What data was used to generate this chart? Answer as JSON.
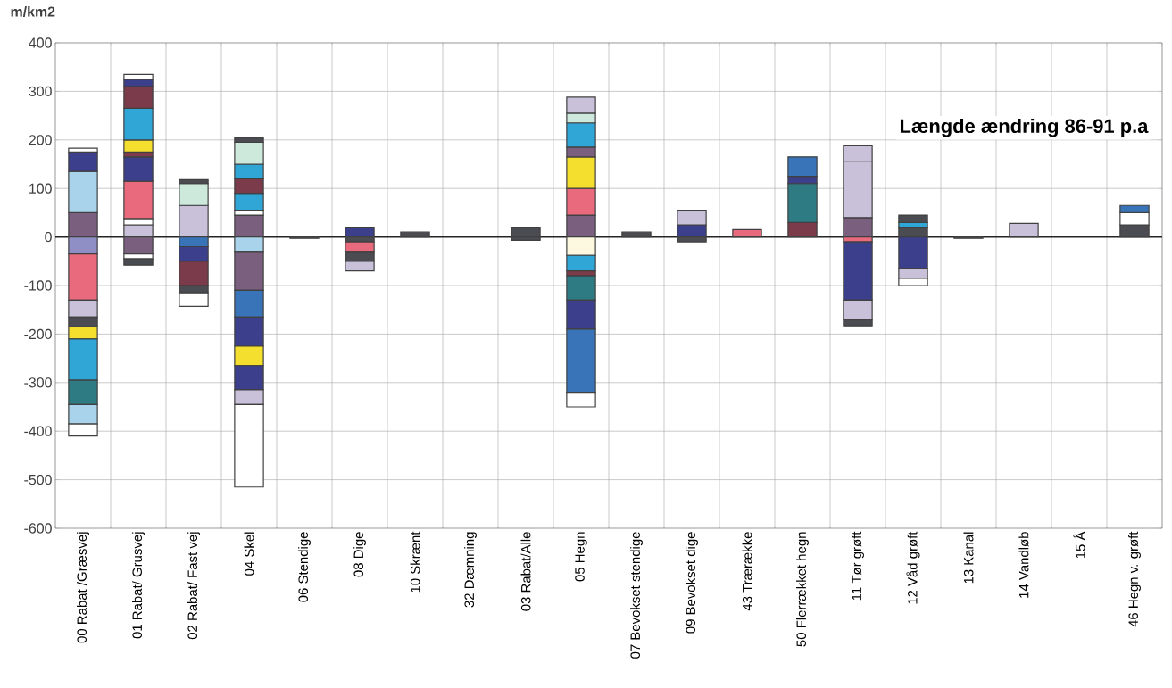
{
  "chart_data": {
    "type": "bar",
    "stacked": true,
    "title": "Længde ændring 86-91 p.a",
    "ylabel": "m/km2",
    "categories": [
      "00 Rabat /Græsvej",
      "01 Rabat/ Grusvej",
      "02 Rabat/ Fast vej",
      "04 Skel",
      "06 Stendige",
      "08 Dige",
      "10 Skrænt",
      "32 Dæmning",
      "03 Rabat/Alle",
      "05 Hegn",
      "07 Bevokset stendige",
      "09 Bevokset dige",
      "43 Trærække",
      "50 Flerrækket hegn",
      "11 Tør grøft",
      "12 Våd grøft",
      "13 Kanal",
      "14 Vandløb",
      "15 Å",
      "46 Hegn v. grøft"
    ],
    "ylim": [
      -600,
      400
    ],
    "yticks": [
      -600,
      -500,
      -400,
      -300,
      -200,
      -100,
      0,
      100,
      200,
      300,
      400
    ],
    "grid": true,
    "series": [
      {
        "values": [
          50,
          25,
          65,
          45,
          null,
          20,
          10,
          null,
          20,
          45,
          10,
          25,
          15,
          30,
          40,
          20,
          null,
          28,
          null,
          25
        ],
        "colors": [
          "#7a5f7e",
          "#c9c1da",
          "#c9c1da",
          "#7a5f7e",
          null,
          "#3b3f8c",
          "#4b4b52",
          null,
          "#4b4b52",
          "#7a5f7e",
          "#4b4b52",
          "#3b3f8c",
          "#e86a7c",
          "#7b3b4a",
          "#7a5f7e",
          "#4b4b52",
          null,
          "#c9c1da",
          null,
          "#4b4b52"
        ]
      },
      {
        "values": [
          85,
          13,
          45,
          10,
          null,
          null,
          null,
          null,
          null,
          55,
          null,
          30,
          null,
          80,
          115,
          10,
          null,
          null,
          null,
          25
        ],
        "colors": [
          "#a9d3ea",
          "#ffffff",
          "#cde9dc",
          "#ffffff",
          null,
          null,
          null,
          null,
          null,
          "#e86a7c",
          null,
          "#c9c1da",
          null,
          "#2f7b84",
          "#c9c1da",
          "#2fa6d6",
          null,
          null,
          null,
          "#ffffff"
        ]
      },
      {
        "values": [
          40,
          77,
          8,
          35,
          null,
          null,
          null,
          null,
          null,
          65,
          null,
          null,
          null,
          15,
          33,
          15,
          null,
          null,
          null,
          15
        ],
        "colors": [
          "#3b3f8c",
          "#e86a7c",
          "#4b4b52",
          "#2fa6d6",
          null,
          null,
          null,
          null,
          null,
          "#f4df2e",
          null,
          null,
          null,
          "#3b3f8c",
          "#c9c1da",
          "#4b4b52",
          null,
          null,
          null,
          "#3a74b8"
        ]
      },
      {
        "values": [
          8,
          50,
          null,
          30,
          null,
          null,
          null,
          null,
          null,
          20,
          null,
          null,
          null,
          40,
          null,
          null,
          null,
          null,
          null,
          null
        ],
        "colors": [
          "#ffffff",
          "#3b3f8c",
          null,
          "#7b3b4a",
          null,
          null,
          null,
          null,
          null,
          "#7a5f7e",
          null,
          null,
          null,
          "#3a74b8",
          null,
          null,
          null,
          null,
          null,
          null
        ]
      },
      {
        "values": [
          null,
          10,
          null,
          30,
          null,
          null,
          null,
          null,
          null,
          50,
          null,
          null,
          null,
          null,
          null,
          null,
          null,
          null,
          null,
          null
        ],
        "colors": [
          null,
          "#7b3b4a",
          null,
          "#2fa6d6",
          null,
          null,
          null,
          null,
          null,
          "#2fa6d6",
          null,
          null,
          null,
          null,
          null,
          null,
          null,
          null,
          null,
          null
        ]
      },
      {
        "values": [
          null,
          25,
          null,
          45,
          null,
          null,
          null,
          null,
          null,
          20,
          null,
          null,
          null,
          null,
          null,
          null,
          null,
          null,
          null,
          null
        ],
        "colors": [
          null,
          "#f4df2e",
          null,
          "#cde9dc",
          null,
          null,
          null,
          null,
          null,
          "#cde9dc",
          null,
          null,
          null,
          null,
          null,
          null,
          null,
          null,
          null,
          null
        ]
      },
      {
        "values": [
          null,
          65,
          null,
          10,
          null,
          null,
          null,
          null,
          null,
          33,
          null,
          null,
          null,
          null,
          null,
          null,
          null,
          null,
          null,
          null
        ],
        "colors": [
          null,
          "#2fa6d6",
          null,
          "#4b4b52",
          null,
          null,
          null,
          null,
          null,
          "#c9c1da",
          null,
          null,
          null,
          null,
          null,
          null,
          null,
          null,
          null,
          null
        ]
      },
      {
        "values": [
          null,
          45,
          null,
          null,
          null,
          null,
          null,
          null,
          null,
          null,
          null,
          null,
          null,
          null,
          null,
          null,
          null,
          null,
          null,
          null
        ],
        "colors": [
          null,
          "#7b3b4a",
          null,
          null,
          null,
          null,
          null,
          null,
          null,
          null,
          null,
          null,
          null,
          null,
          null,
          null,
          null,
          null,
          null,
          null
        ]
      },
      {
        "values": [
          null,
          15,
          null,
          null,
          null,
          null,
          null,
          null,
          null,
          null,
          null,
          null,
          null,
          null,
          null,
          null,
          null,
          null,
          null,
          null
        ],
        "colors": [
          null,
          "#3b3f8c",
          null,
          null,
          null,
          null,
          null,
          null,
          null,
          null,
          null,
          null,
          null,
          null,
          null,
          null,
          null,
          null,
          null,
          null
        ]
      },
      {
        "values": [
          null,
          10,
          null,
          null,
          null,
          null,
          null,
          null,
          null,
          null,
          null,
          null,
          null,
          null,
          null,
          null,
          null,
          null,
          null,
          null
        ],
        "colors": [
          null,
          "#ffffff",
          null,
          null,
          null,
          null,
          null,
          null,
          null,
          null,
          null,
          null,
          null,
          null,
          null,
          null,
          null,
          null,
          null,
          null
        ]
      },
      {
        "values": [
          -35,
          -35,
          -20,
          -30,
          -3,
          -10,
          null,
          null,
          -7,
          -38,
          null,
          -10,
          null,
          null,
          -10,
          -65,
          -3,
          null,
          null,
          null
        ],
        "colors": [
          "#8f8fc6",
          "#7a5f7e",
          "#3a74b8",
          "#a9d3ea",
          "#4b4b52",
          "#4b4b52",
          null,
          null,
          "#4b4b52",
          "#fdf9e0",
          null,
          "#4b4b52",
          null,
          null,
          "#e86a7c",
          "#3b3f8c",
          "#4b4b52",
          null,
          null,
          null
        ]
      },
      {
        "values": [
          -95,
          -10,
          -30,
          -80,
          null,
          -20,
          null,
          null,
          null,
          -32,
          null,
          null,
          null,
          null,
          -120,
          -20,
          null,
          null,
          null,
          null
        ],
        "colors": [
          "#e86a7c",
          "#ffffff",
          "#3b3f8c",
          "#7a5f7e",
          null,
          "#e86a7c",
          null,
          null,
          null,
          "#2fa6d6",
          null,
          null,
          null,
          null,
          "#3b3f8c",
          "#c9c1da",
          null,
          null,
          null,
          null
        ]
      },
      {
        "values": [
          -35,
          -13,
          -50,
          -55,
          null,
          -20,
          null,
          null,
          null,
          -10,
          null,
          null,
          null,
          null,
          -40,
          -15,
          null,
          null,
          null,
          null
        ],
        "colors": [
          "#c9c1da",
          "#4b4b52",
          "#7b3b4a",
          "#3a74b8",
          null,
          "#4b4b52",
          null,
          null,
          null,
          "#7b3b4a",
          null,
          null,
          null,
          null,
          "#c9c1da",
          "#ffffff",
          null,
          null,
          null,
          null
        ]
      },
      {
        "values": [
          -20,
          null,
          -15,
          -60,
          null,
          -20,
          null,
          null,
          null,
          -50,
          null,
          null,
          null,
          null,
          -13,
          null,
          null,
          null,
          null,
          null
        ],
        "colors": [
          "#4b4b52",
          null,
          "#4b4b52",
          "#3b3f8c",
          null,
          "#c9c1da",
          null,
          null,
          null,
          "#2f7b84",
          null,
          null,
          null,
          null,
          "#4b4b52",
          null,
          null,
          null,
          null,
          null
        ]
      },
      {
        "values": [
          -25,
          null,
          -28,
          -40,
          null,
          null,
          null,
          null,
          null,
          -60,
          null,
          null,
          null,
          null,
          null,
          null,
          null,
          null,
          null,
          null
        ],
        "colors": [
          "#f4df2e",
          null,
          "#ffffff",
          "#f4df2e",
          null,
          null,
          null,
          null,
          null,
          "#3b3f8c",
          null,
          null,
          null,
          null,
          null,
          null,
          null,
          null,
          null,
          null
        ]
      },
      {
        "values": [
          -85,
          null,
          null,
          -50,
          null,
          null,
          null,
          null,
          null,
          -130,
          null,
          null,
          null,
          null,
          null,
          null,
          null,
          null,
          null,
          null
        ],
        "colors": [
          "#2fa6d6",
          null,
          null,
          "#3b3f8c",
          null,
          null,
          null,
          null,
          null,
          "#3a74b8",
          null,
          null,
          null,
          null,
          null,
          null,
          null,
          null,
          null,
          null
        ]
      },
      {
        "values": [
          -50,
          null,
          null,
          -30,
          null,
          null,
          null,
          null,
          null,
          -30,
          null,
          null,
          null,
          null,
          null,
          null,
          null,
          null,
          null,
          null
        ],
        "colors": [
          "#2f7b84",
          null,
          null,
          "#c9c1da",
          null,
          null,
          null,
          null,
          null,
          "#ffffff",
          null,
          null,
          null,
          null,
          null,
          null,
          null,
          null,
          null,
          null
        ]
      },
      {
        "values": [
          -40,
          null,
          null,
          -170,
          null,
          null,
          null,
          null,
          null,
          null,
          null,
          null,
          null,
          null,
          null,
          null,
          null,
          null,
          null,
          null
        ],
        "colors": [
          "#a9d3ea",
          null,
          null,
          "#ffffff",
          null,
          null,
          null,
          null,
          null,
          null,
          null,
          null,
          null,
          null,
          null,
          null,
          null,
          null,
          null,
          null
        ]
      },
      {
        "values": [
          -25,
          null,
          null,
          null,
          null,
          null,
          null,
          null,
          null,
          null,
          null,
          null,
          null,
          null,
          null,
          null,
          null,
          null,
          null,
          null
        ],
        "colors": [
          "#ffffff",
          null,
          null,
          null,
          null,
          null,
          null,
          null,
          null,
          null,
          null,
          null,
          null,
          null,
          null,
          null,
          null,
          null,
          null,
          null
        ]
      }
    ]
  }
}
